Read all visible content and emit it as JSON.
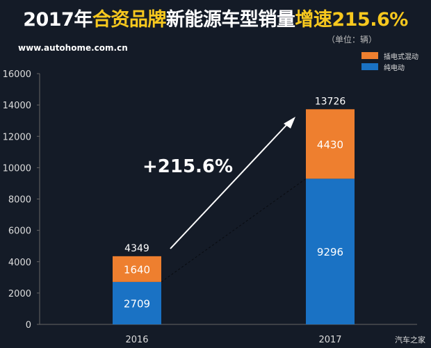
{
  "title": {
    "part1": "2017年",
    "part2": "合资品牌",
    "part3": "新能源车型销量",
    "part4": "增速215.6%"
  },
  "unit": "（单位：辆）",
  "site": "www.autohome.com.cn",
  "watermark": "汽车之家",
  "colors": {
    "phev": "#ee7f2f",
    "bev": "#1a72c4",
    "highlight": "#f7c81e",
    "background": "#141b27"
  },
  "chart_data": {
    "type": "bar",
    "stacked": true,
    "categories": [
      "2016",
      "2017"
    ],
    "series": [
      {
        "name": "纯电动",
        "values": [
          2709,
          9296
        ]
      },
      {
        "name": "插电式混动",
        "values": [
          1640,
          4430
        ]
      }
    ],
    "totals": [
      "4349",
      "13726"
    ],
    "data_labels": {
      "bev": [
        "2709",
        "9296"
      ],
      "phev": [
        "1640",
        "4430"
      ]
    },
    "annotation": "+215.6%",
    "ylim": [
      0,
      16000
    ],
    "yticks": [
      "0",
      "2000",
      "4000",
      "6000",
      "8000",
      "10000",
      "12000",
      "14000",
      "16000"
    ],
    "legend_placement": "top-right",
    "grid": false
  }
}
